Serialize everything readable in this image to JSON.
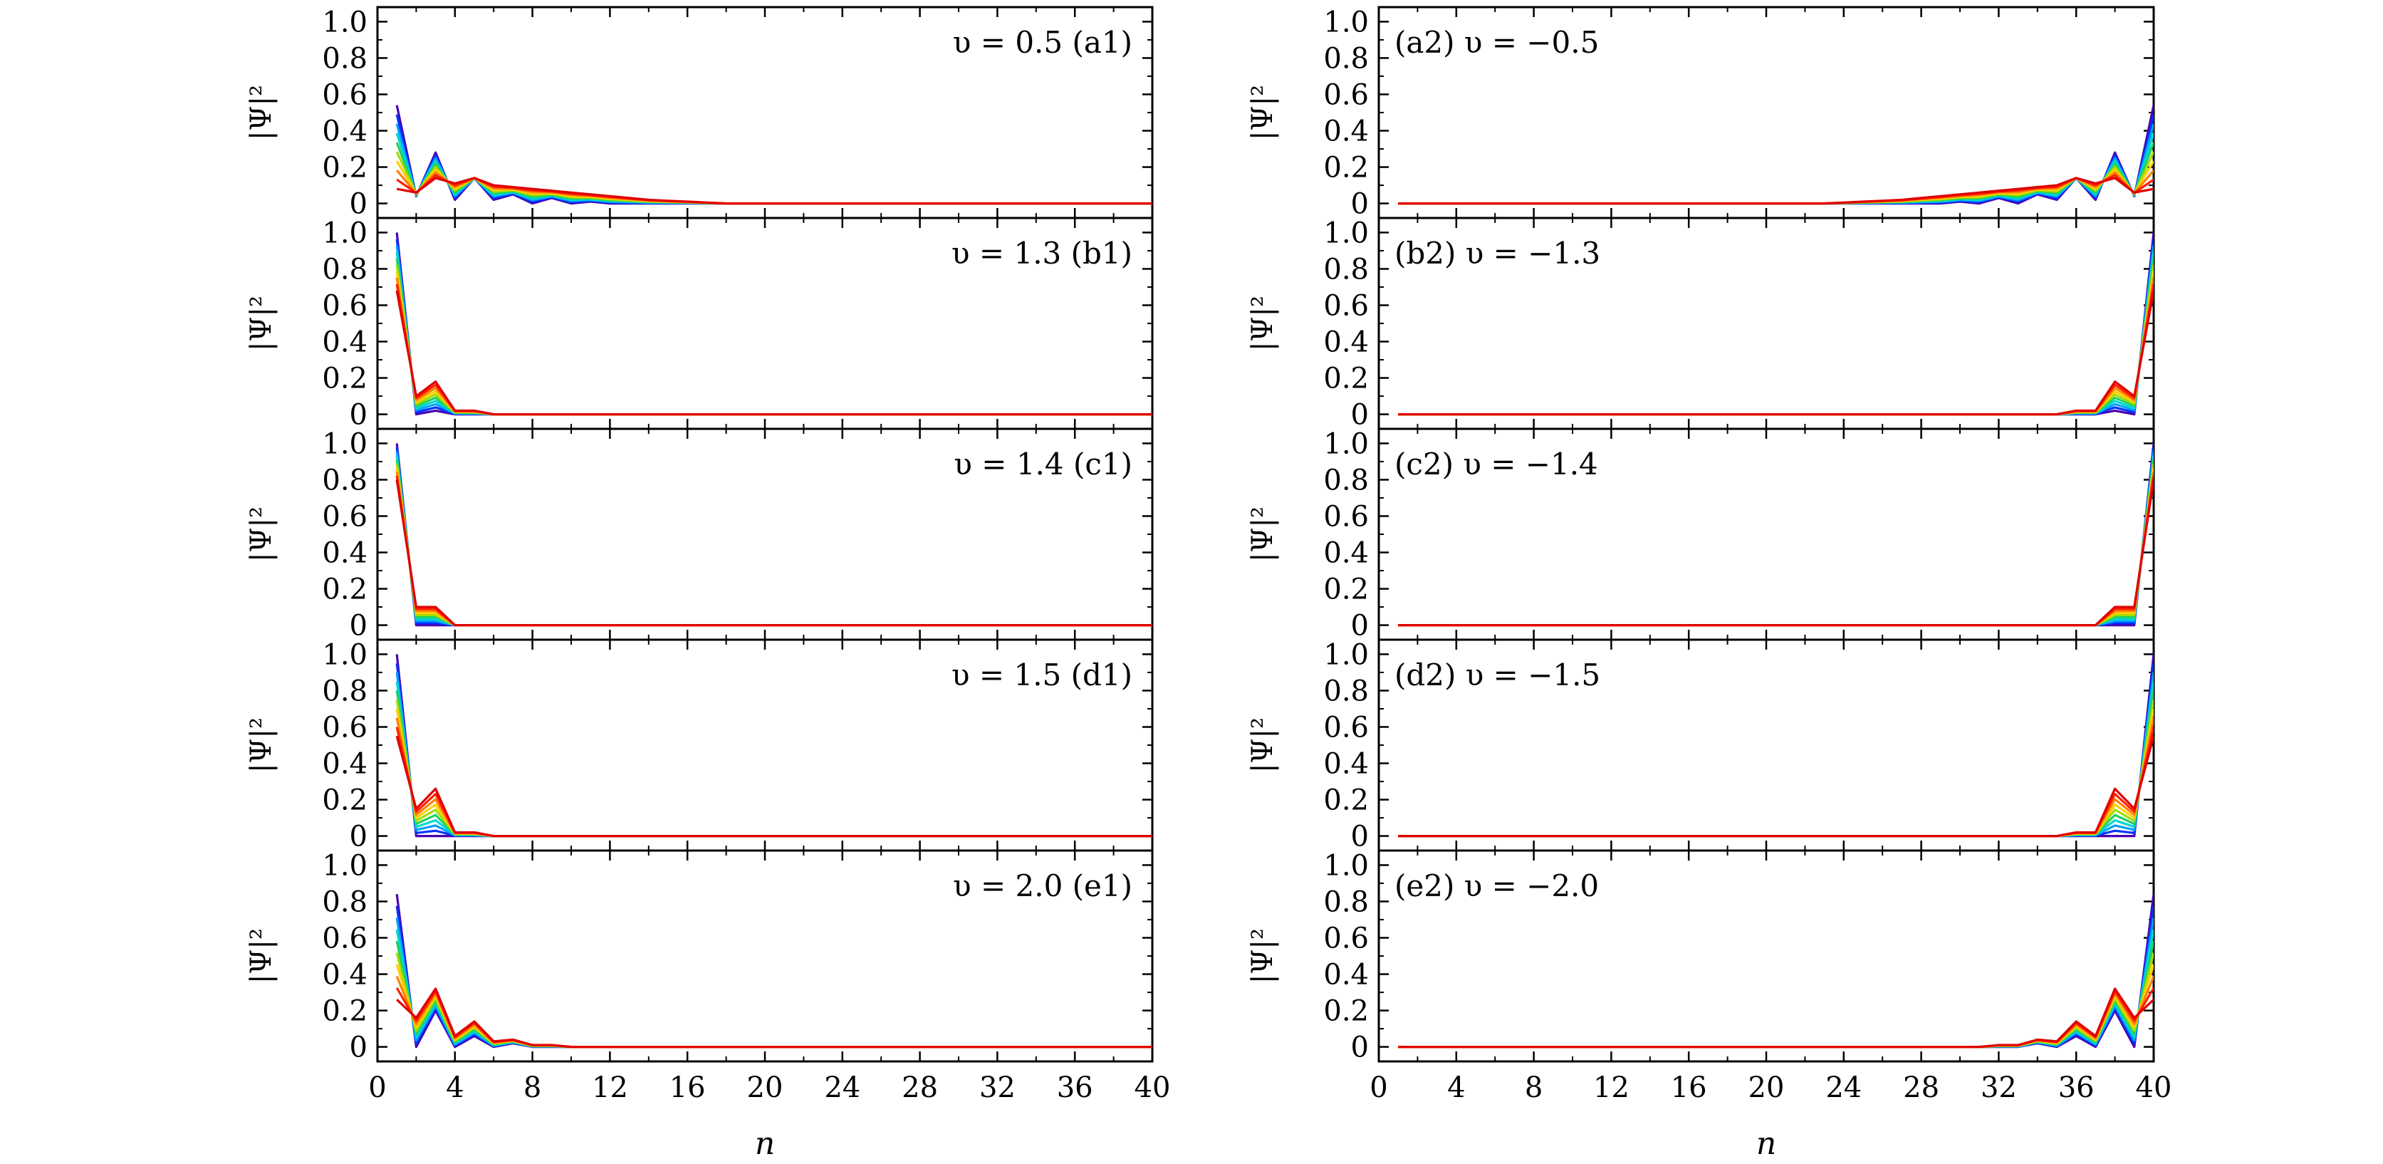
{
  "chart_data": {
    "type": "line",
    "ylabel": "|Ψ|²",
    "xlabel": "n",
    "x_ticks": [
      "0",
      "4",
      "8",
      "12",
      "16",
      "20",
      "24",
      "28",
      "32",
      "36",
      "40"
    ],
    "y_ticks": [
      "0",
      "0.2",
      "0.4",
      "0.6",
      "0.8",
      "1.0"
    ],
    "xlim": [
      0,
      40
    ],
    "ylim": [
      -0.08,
      1.08
    ],
    "grid": false,
    "legend": "none",
    "series_color_scale": [
      "#4a00b0",
      "#0033ff",
      "#00a0ff",
      "#00d8d0",
      "#20d060",
      "#a0dc00",
      "#ffd000",
      "#ff8000",
      "#ff2000",
      "#e00000"
    ],
    "panels": [
      {
        "id": "a1",
        "label": "υ = 0.5  (a1)",
        "label_side": "right",
        "side": "left",
        "profile": [
          0.54,
          0.04,
          0.28,
          0.02,
          0.14,
          0.02,
          0.05,
          0.0,
          0.03,
          0.0,
          0.01,
          0,
          0,
          0,
          0,
          0,
          0,
          0,
          0,
          0,
          0,
          0,
          0,
          0,
          0,
          0,
          0,
          0,
          0,
          0,
          0,
          0,
          0,
          0,
          0,
          0,
          0,
          0,
          0,
          0
        ],
        "profile_end": [
          0.08,
          0.06,
          0.14,
          0.11,
          0.14,
          0.1,
          0.09,
          0.08,
          0.07,
          0.06,
          0.05,
          0.04,
          0.03,
          0.02,
          0.015,
          0.01,
          0.005,
          0,
          0,
          0,
          0,
          0,
          0,
          0,
          0,
          0,
          0,
          0,
          0,
          0,
          0,
          0,
          0,
          0,
          0,
          0,
          0,
          0,
          0,
          0
        ]
      },
      {
        "id": "a2",
        "label": "(a2) υ = −0.5",
        "label_side": "left",
        "side": "right",
        "mirror_of": "a1"
      },
      {
        "id": "b1",
        "label": "υ = 1.3  (b1)",
        "label_side": "right",
        "side": "left",
        "profile": [
          1.0,
          0.0,
          0.02,
          0.0,
          0.0,
          0,
          0,
          0,
          0,
          0,
          0,
          0,
          0,
          0,
          0,
          0,
          0,
          0,
          0,
          0,
          0,
          0,
          0,
          0,
          0,
          0,
          0,
          0,
          0,
          0,
          0,
          0,
          0,
          0,
          0,
          0,
          0,
          0,
          0,
          0
        ],
        "profile_end": [
          0.68,
          0.1,
          0.18,
          0.02,
          0.02,
          0,
          0,
          0,
          0,
          0,
          0,
          0,
          0,
          0,
          0,
          0,
          0,
          0,
          0,
          0,
          0,
          0,
          0,
          0,
          0,
          0,
          0,
          0,
          0,
          0,
          0,
          0,
          0,
          0,
          0,
          0,
          0,
          0,
          0,
          0
        ]
      },
      {
        "id": "b2",
        "label": "(b2) υ = −1.3",
        "label_side": "left",
        "side": "right",
        "mirror_of": "b1"
      },
      {
        "id": "c1",
        "label": "υ = 1.4  (c1)",
        "label_side": "right",
        "side": "left",
        "profile": [
          1.0,
          0.0,
          0.0,
          0.0,
          0.0,
          0,
          0,
          0,
          0,
          0,
          0,
          0,
          0,
          0,
          0,
          0,
          0,
          0,
          0,
          0,
          0,
          0,
          0,
          0,
          0,
          0,
          0,
          0,
          0,
          0,
          0,
          0,
          0,
          0,
          0,
          0,
          0,
          0,
          0,
          0
        ],
        "profile_end": [
          0.8,
          0.1,
          0.1,
          0.0,
          0.0,
          0,
          0,
          0,
          0,
          0,
          0,
          0,
          0,
          0,
          0,
          0,
          0,
          0,
          0,
          0,
          0,
          0,
          0,
          0,
          0,
          0,
          0,
          0,
          0,
          0,
          0,
          0,
          0,
          0,
          0,
          0,
          0,
          0,
          0,
          0
        ]
      },
      {
        "id": "c2",
        "label": "(c2) υ = −1.4",
        "label_side": "left",
        "side": "right",
        "mirror_of": "c1"
      },
      {
        "id": "d1",
        "label": "υ = 1.5  (d1)",
        "label_side": "right",
        "side": "left",
        "profile": [
          1.0,
          0.0,
          0.0,
          0.0,
          0.0,
          0,
          0,
          0,
          0,
          0,
          0,
          0,
          0,
          0,
          0,
          0,
          0,
          0,
          0,
          0,
          0,
          0,
          0,
          0,
          0,
          0,
          0,
          0,
          0,
          0,
          0,
          0,
          0,
          0,
          0,
          0,
          0,
          0,
          0,
          0
        ],
        "profile_end": [
          0.55,
          0.15,
          0.26,
          0.02,
          0.02,
          0,
          0,
          0,
          0,
          0,
          0,
          0,
          0,
          0,
          0,
          0,
          0,
          0,
          0,
          0,
          0,
          0,
          0,
          0,
          0,
          0,
          0,
          0,
          0,
          0,
          0,
          0,
          0,
          0,
          0,
          0,
          0,
          0,
          0,
          0
        ]
      },
      {
        "id": "d2",
        "label": "(d2) υ = −1.5",
        "label_side": "left",
        "side": "right",
        "mirror_of": "d1"
      },
      {
        "id": "e1",
        "label": "υ = 2.0  (e1)",
        "label_side": "right",
        "side": "left",
        "profile": [
          0.84,
          0.0,
          0.2,
          0.0,
          0.06,
          0.0,
          0.02,
          0,
          0,
          0,
          0,
          0,
          0,
          0,
          0,
          0,
          0,
          0,
          0,
          0,
          0,
          0,
          0,
          0,
          0,
          0,
          0,
          0,
          0,
          0,
          0,
          0,
          0,
          0,
          0,
          0,
          0,
          0,
          0,
          0
        ],
        "profile_end": [
          0.26,
          0.16,
          0.32,
          0.06,
          0.14,
          0.03,
          0.04,
          0.01,
          0.01,
          0,
          0,
          0,
          0,
          0,
          0,
          0,
          0,
          0,
          0,
          0,
          0,
          0,
          0,
          0,
          0,
          0,
          0,
          0,
          0,
          0,
          0,
          0,
          0,
          0,
          0,
          0,
          0,
          0,
          0,
          0
        ]
      },
      {
        "id": "e2",
        "label": "(e2) υ = −2.0",
        "label_side": "left",
        "side": "right",
        "mirror_of": "e1"
      }
    ]
  }
}
